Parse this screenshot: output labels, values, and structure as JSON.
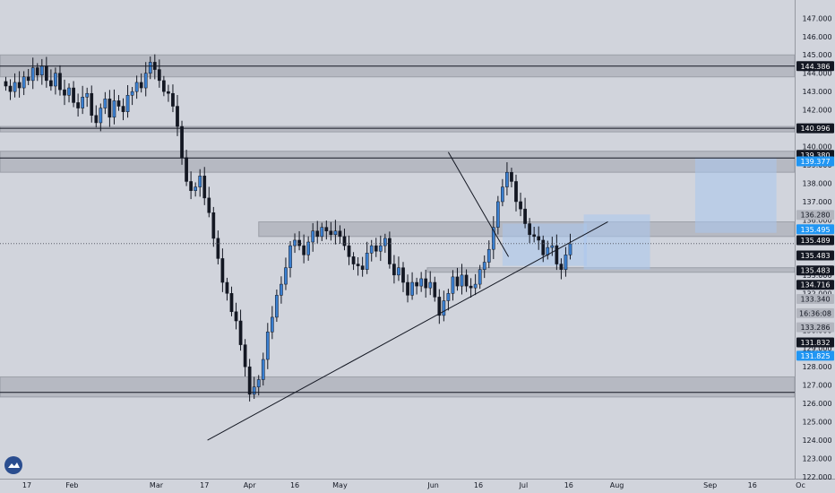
{
  "colors": {
    "background": "#d1d4dc",
    "up_body": "#3a7fd0",
    "down_body": "#131722",
    "zone_gray": "#9598a1",
    "zone_blue": "#a9c6ee",
    "line": "#131722",
    "badge_black": "#131722",
    "badge_gray": "#b2b5be",
    "badge_blue": "#2196f3"
  },
  "icons": {
    "logo": "tradingview-cloud-icon"
  },
  "chart_data": {
    "type": "candlestick",
    "ylim": [
      122.0,
      147.6
    ],
    "y_ticks": [
      "122.000",
      "123.000",
      "124.000",
      "125.000",
      "126.000",
      "127.000",
      "128.000",
      "129.000",
      "130.000",
      "131.000",
      "132.000",
      "133.000",
      "134.000",
      "135.000",
      "136.000",
      "137.000",
      "138.000",
      "139.000",
      "140.000",
      "141.000",
      "142.000",
      "143.000",
      "144.000",
      "145.000",
      "146.000",
      "147.000"
    ],
    "x_labels": [
      {
        "label": "17",
        "day": 0
      },
      {
        "label": "Feb",
        "day": 15
      },
      {
        "label": "Mar",
        "day": 43
      },
      {
        "label": "17",
        "day": 59
      },
      {
        "label": "Apr",
        "day": 74
      },
      {
        "label": "16",
        "day": 89
      },
      {
        "label": "May",
        "day": 104
      },
      {
        "label": "Jun",
        "day": 135
      },
      {
        "label": "16",
        "day": 150
      },
      {
        "label": "Jul",
        "day": 165
      },
      {
        "label": "16",
        "day": 180
      },
      {
        "label": "Aug",
        "day": 196
      },
      {
        "label": "Sep",
        "day": 227
      },
      {
        "label": "16",
        "day": 241
      },
      {
        "label": "Oc",
        "day": 257
      }
    ],
    "close_series_x_start_day": -7,
    "close_series_x_step_days": 1.5,
    "closes": [
      143.3,
      143.0,
      143.5,
      143.2,
      143.8,
      143.6,
      144.3,
      143.9,
      144.4,
      143.6,
      143.3,
      144.0,
      143.1,
      142.8,
      143.2,
      142.4,
      142.1,
      142.7,
      142.9,
      141.7,
      141.3,
      142.1,
      142.6,
      141.6,
      142.5,
      142.2,
      141.9,
      142.8,
      143.0,
      143.5,
      143.2,
      144.0,
      144.6,
      144.2,
      143.6,
      143.0,
      142.9,
      142.2,
      141.1,
      139.4,
      138.1,
      137.6,
      137.8,
      138.4,
      137.2,
      136.4,
      135.0,
      133.9,
      132.6,
      132.0,
      131.0,
      130.5,
      129.2,
      128.0,
      126.5,
      126.9,
      127.3,
      128.4,
      129.9,
      130.7,
      131.9,
      132.5,
      133.4,
      134.6,
      134.9,
      134.6,
      134.1,
      134.8,
      135.4,
      135.1,
      135.6,
      135.4,
      135.2,
      135.4,
      135.1,
      134.6,
      134.0,
      133.6,
      133.5,
      133.3,
      134.2,
      134.6,
      134.3,
      134.6,
      135.0,
      133.6,
      133.0,
      133.4,
      132.6,
      131.9,
      132.6,
      132.4,
      132.8,
      132.3,
      132.6,
      131.8,
      130.8,
      131.6,
      132.0,
      132.9,
      132.4,
      133.0,
      132.4,
      132.3,
      132.5,
      133.3,
      133.7,
      134.4,
      135.6,
      137.0,
      137.8,
      138.6,
      138.1,
      137.0,
      136.6,
      135.8,
      135.2,
      135.1,
      134.9,
      134.1,
      134.5,
      134.6,
      133.6,
      133.3,
      134.1,
      134.7
    ],
    "price_lines": [
      {
        "price": 144.386
      },
      {
        "price": 140.996
      },
      {
        "price": 139.38
      },
      {
        "price": 126.602
      }
    ],
    "gray_zones": [
      {
        "top": 145.0,
        "bottom": 143.8,
        "day_start": -10,
        "day_end": 262
      },
      {
        "top": 141.1,
        "bottom": 140.8,
        "day_start": -10,
        "day_end": 262
      },
      {
        "top": 139.75,
        "bottom": 138.6,
        "day_start": -10,
        "day_end": 262
      },
      {
        "top": 127.45,
        "bottom": 126.35,
        "day_start": -10,
        "day_end": 262
      },
      {
        "top": 135.9,
        "bottom": 135.1,
        "day_start": 77,
        "day_end": 262
      },
      {
        "top": 133.4,
        "bottom": 133.15,
        "day_start": 133,
        "day_end": 262
      }
    ],
    "blue_zones": [
      {
        "top": 135.8,
        "bottom": 133.5,
        "day_start": 158,
        "day_end": 186
      },
      {
        "top": 136.3,
        "bottom": 133.3,
        "day_start": 185,
        "day_end": 207
      },
      {
        "top": 139.4,
        "bottom": 135.3,
        "day_start": 222,
        "day_end": 249
      }
    ],
    "trendlines": [
      {
        "d1": 60,
        "p1": 124.0,
        "d2": 193,
        "p2": 135.9
      },
      {
        "d1": 140,
        "p1": 139.7,
        "d2": 160,
        "p2": 134.0
      }
    ],
    "dotted_line": {
      "price": 134.716
    },
    "axis_badges": [
      {
        "price": 144.386,
        "text": "144.386",
        "style": "black"
      },
      {
        "price": 140.996,
        "text": "140.996",
        "style": "black"
      },
      {
        "price": 139.55,
        "text": "139.380",
        "style": "black"
      },
      {
        "price": 139.2,
        "text": "139.377",
        "style": "blue"
      },
      {
        "price": 136.28,
        "text": "136.280",
        "style": "gray"
      },
      {
        "price": 135.495,
        "text": "135.495",
        "style": "blue"
      },
      {
        "price": 134.9,
        "text": "135.489",
        "style": "black"
      },
      {
        "price": 134.07,
        "text": "135.483",
        "style": "black"
      },
      {
        "price": 133.25,
        "text": "135.483",
        "style": "black"
      },
      {
        "price": 132.47,
        "text": "134.716",
        "style": "black"
      },
      {
        "price": 131.7,
        "text": "133.340",
        "style": "gray"
      },
      {
        "price": 130.92,
        "text": "16:36:08",
        "style": "gray"
      },
      {
        "price": 130.15,
        "text": "133.286",
        "style": "gray"
      },
      {
        "price": 129.33,
        "text": "131.832",
        "style": "black"
      },
      {
        "price": 128.6,
        "text": "131.825",
        "style": "blue"
      }
    ]
  }
}
